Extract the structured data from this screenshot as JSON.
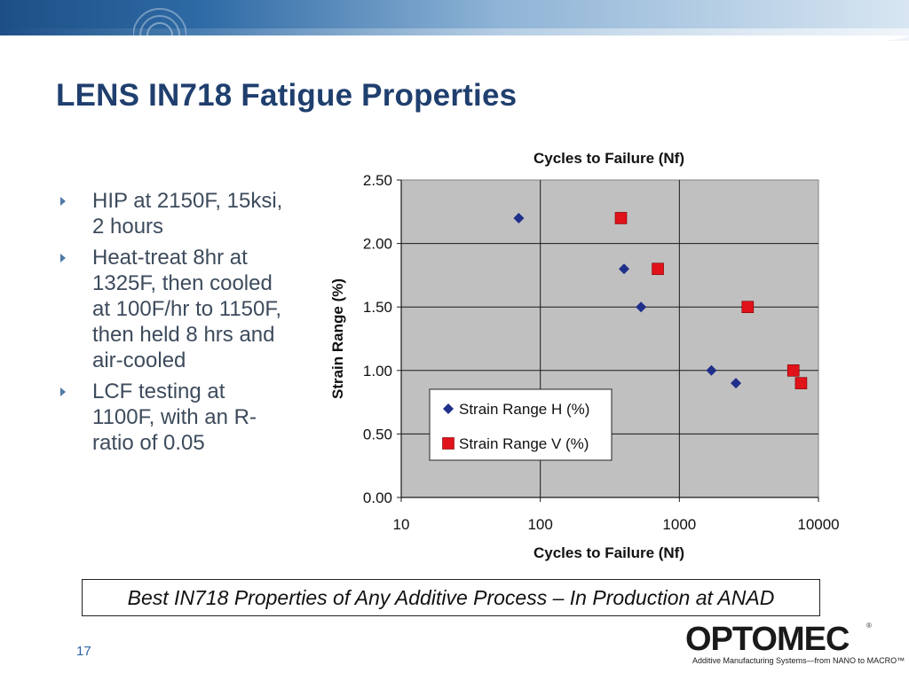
{
  "slide": {
    "title": "LENS IN718 Fatigue Properties",
    "bullets": [
      "HIP at 2150F, 15ksi, 2 hours",
      "Heat-treat 8hr at 1325F, then cooled at 100F/hr to 1150F, then held 8 hrs and air-cooled",
      "LCF testing at 1100F, with an R-ratio of 0.05"
    ],
    "caption": "Best IN718 Properties of Any Additive Process – In Production at ANAD",
    "page_number": "17",
    "logo": {
      "wordmark": "OPTOMEC",
      "registered": "®",
      "tagline": "Additive Manufacturing Systems—from NANO to MACRO™"
    },
    "colors": {
      "title": "#1f3f6e",
      "header_band": "#1d4f86",
      "series_h": "#1f2f8a",
      "series_v": "#e0121a",
      "plot_bg": "#c0c0c0"
    }
  },
  "chart_data": {
    "type": "scatter",
    "title": "Cycles to Failure (Nf)",
    "xlabel": "Cycles to Failure (Nf)",
    "ylabel": "Strain Range (%)",
    "xscale": "log",
    "xlim": [
      10,
      10000
    ],
    "ylim": [
      0,
      2.5
    ],
    "xticks": [
      "10",
      "100",
      "1000",
      "10000"
    ],
    "yticks": [
      "0.00",
      "0.50",
      "1.00",
      "1.50",
      "2.00",
      "2.50"
    ],
    "grid": true,
    "legend": "bottom-left",
    "series": [
      {
        "name": "Strain Range H (%)",
        "marker": "diamond",
        "color": "#1f2f8a",
        "points": [
          [
            70,
            2.2
          ],
          [
            400,
            1.8
          ],
          [
            530,
            1.5
          ],
          [
            1700,
            1.0
          ],
          [
            2550,
            0.9
          ]
        ]
      },
      {
        "name": "Strain Range V (%)",
        "marker": "square",
        "color": "#e0121a",
        "points": [
          [
            380,
            2.2
          ],
          [
            700,
            1.8
          ],
          [
            3100,
            1.5
          ],
          [
            6600,
            1.0
          ],
          [
            7500,
            0.9
          ]
        ]
      }
    ]
  }
}
